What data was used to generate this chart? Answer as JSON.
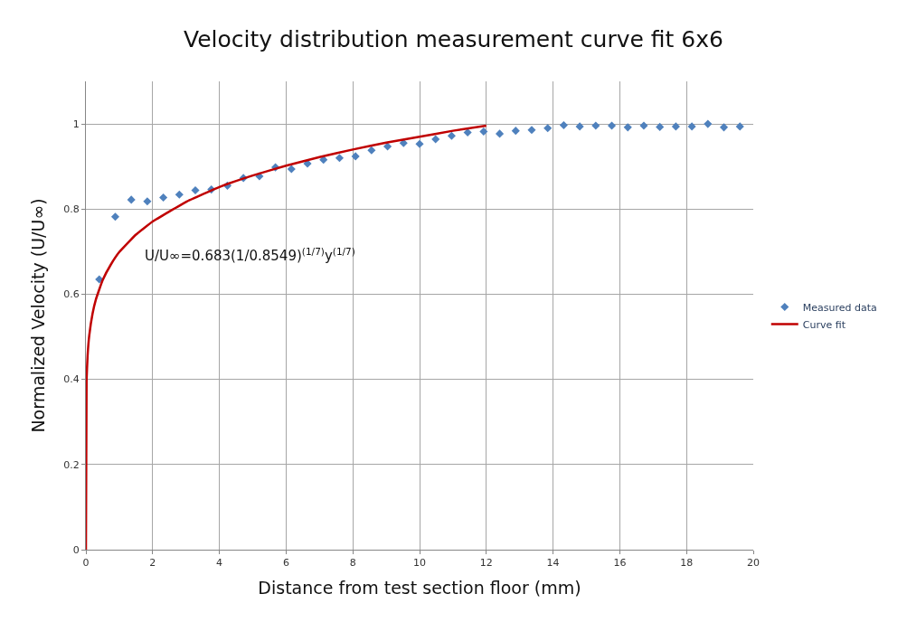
{
  "chart_data": {
    "type": "scatter",
    "title": "Velocity distribution measurement curve fit 6x6",
    "xlabel": "Distance from test section floor (mm)",
    "ylabel": "Normalized Velocity (U/U∞)",
    "xlim": [
      0,
      20
    ],
    "xticks": [
      0,
      2,
      4,
      6,
      8,
      10,
      12,
      14,
      16,
      18,
      20
    ],
    "ylim": [
      0,
      1.1
    ],
    "yticks": [
      0,
      0.2,
      0.4,
      0.6,
      0.8,
      1
    ],
    "grid": true,
    "legend": "right",
    "annotations": [
      "U/U∞=0.683(1/0.8549)$^{(1/7)}$y$^{(1/7)}$"
    ],
    "series": [
      {
        "name": "Measured data",
        "marker": "diamond",
        "color": "#4f81bd",
        "x": [
          0.4,
          0.88,
          1.36,
          1.84,
          2.32,
          2.8,
          3.28,
          3.76,
          4.24,
          4.72,
          5.2,
          5.68,
          6.16,
          6.64,
          7.12,
          7.6,
          8.08,
          8.56,
          9.04,
          9.52,
          10.0,
          10.48,
          10.96,
          11.44,
          11.92,
          12.4,
          12.88,
          13.36,
          13.84,
          14.32,
          14.8,
          15.28,
          15.76,
          16.24,
          16.72,
          17.2,
          17.68,
          18.16,
          18.64,
          19.12,
          19.6
        ],
        "values": [
          0.635,
          0.782,
          0.822,
          0.818,
          0.827,
          0.834,
          0.844,
          0.846,
          0.855,
          0.873,
          0.877,
          0.898,
          0.894,
          0.907,
          0.916,
          0.92,
          0.924,
          0.938,
          0.947,
          0.955,
          0.953,
          0.964,
          0.972,
          0.98,
          0.982,
          0.977,
          0.984,
          0.986,
          0.99,
          0.997,
          0.994,
          0.996,
          0.996,
          0.992,
          0.996,
          0.993,
          0.994,
          0.994,
          1.0,
          0.992,
          0.994
        ]
      },
      {
        "name": "Curve fit",
        "type": "line",
        "marker": "none",
        "color": "#c00000",
        "x": [
          0,
          0.02,
          0.05,
          0.1,
          0.2,
          0.3,
          0.5,
          0.75,
          1,
          1.5,
          2,
          3,
          4,
          5,
          6,
          7,
          8,
          9,
          10,
          11,
          12
        ],
        "values": [
          0,
          0.399,
          0.455,
          0.503,
          0.555,
          0.588,
          0.633,
          0.67,
          0.699,
          0.74,
          0.771,
          0.817,
          0.852,
          0.879,
          0.902,
          0.922,
          0.94,
          0.956,
          0.97,
          0.984,
          0.996
        ]
      }
    ]
  }
}
